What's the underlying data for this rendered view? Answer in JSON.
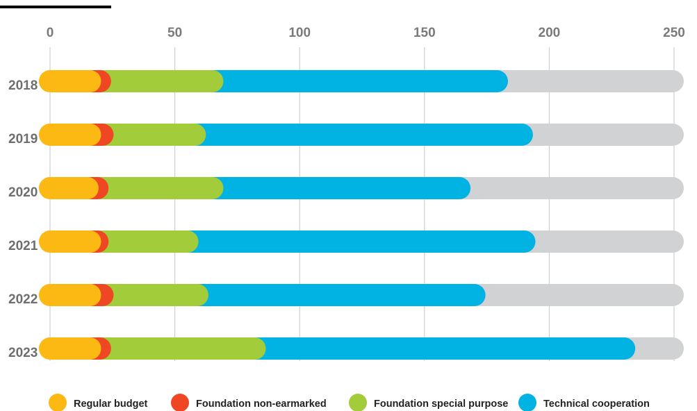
{
  "chart_data": {
    "type": "bar",
    "orientation": "horizontal",
    "stacked": true,
    "title": "",
    "xlabel": "",
    "ylabel": "",
    "xlim": [
      0,
      250
    ],
    "xticks": [
      0,
      50,
      100,
      150,
      200,
      250
    ],
    "categories": [
      "2018",
      "2019",
      "2020",
      "2021",
      "2022",
      "2023"
    ],
    "series": [
      {
        "name": "Regular budget",
        "color": "#FDB913",
        "values": [
          16,
          16,
          15,
          16,
          16,
          16
        ]
      },
      {
        "name": "Foundation non-earmarked",
        "color": "#EF4723",
        "values": [
          4,
          5,
          4,
          3,
          5,
          4
        ]
      },
      {
        "name": "Foundation special purpose",
        "color": "#A2CC39",
        "values": [
          45,
          37,
          46,
          36,
          38,
          62
        ]
      },
      {
        "name": "Technical cooperation",
        "color": "#00B3E3",
        "values": [
          114,
          131,
          99,
          135,
          111,
          148
        ]
      }
    ],
    "track_color": "#D1D2D4",
    "grid": true,
    "legend_position": "bottom"
  }
}
